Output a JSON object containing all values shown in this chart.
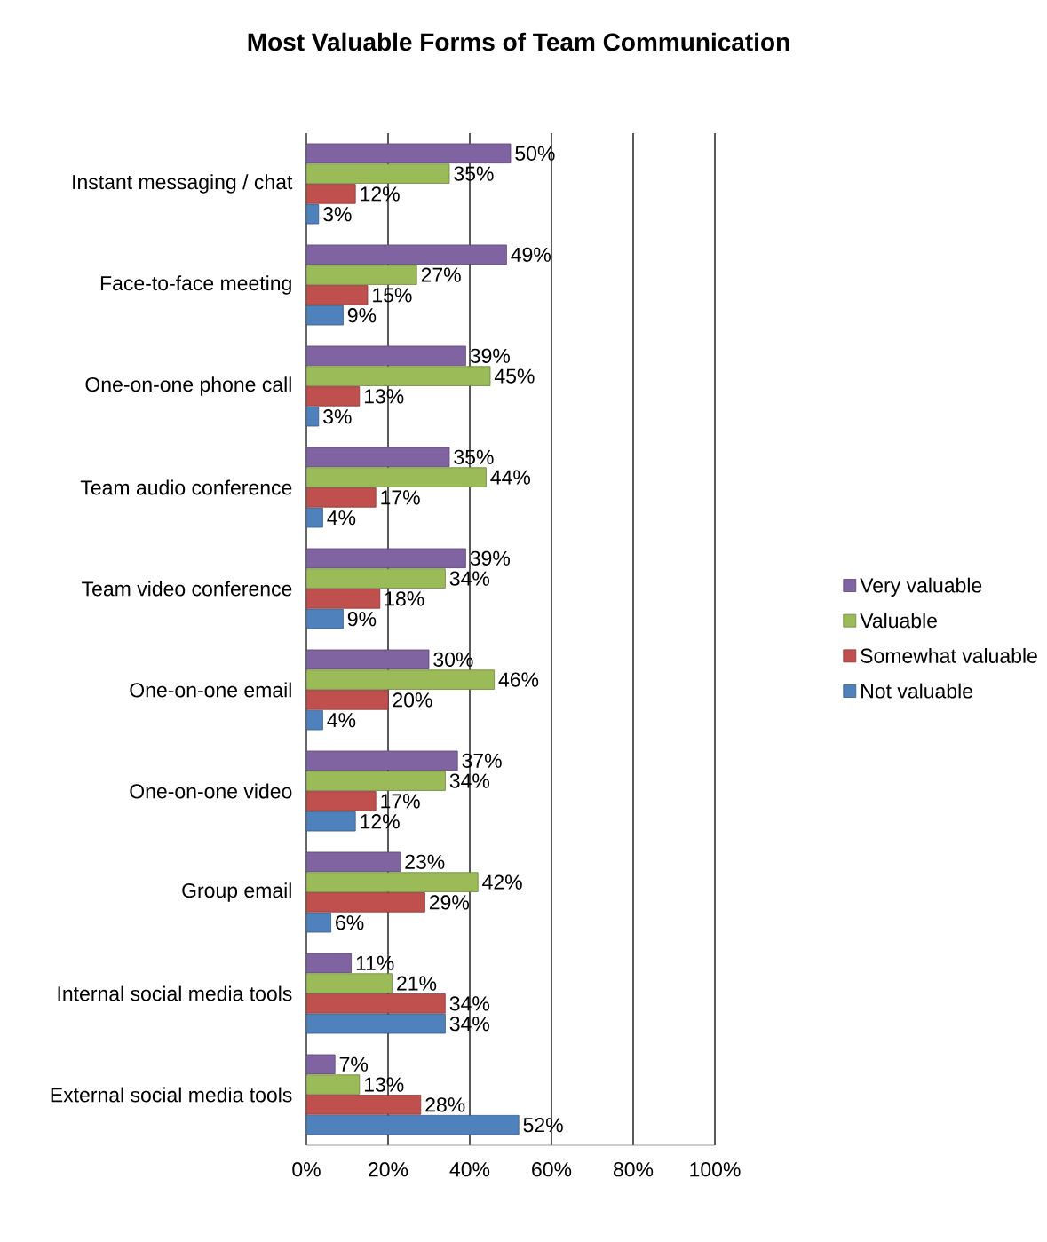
{
  "chart_data": {
    "type": "bar",
    "orientation": "horizontal",
    "title": "Most Valuable Forms of Team Communication",
    "categories": [
      "Instant messaging / chat",
      "Face-to-face meeting",
      "One-on-one phone call",
      "Team audio conference",
      "Team video conference",
      "One-on-one email",
      "One-on-one video",
      "Group email",
      "Internal social media tools",
      "External social media tools"
    ],
    "series": [
      {
        "name": "Very valuable",
        "color": "#8064a2",
        "values": [
          50,
          49,
          39,
          35,
          39,
          30,
          37,
          23,
          11,
          7
        ],
        "value_labels": [
          "50%",
          "49%",
          "39%",
          "35%",
          "39%",
          "30%",
          "37%",
          "23%",
          "11%",
          "7%"
        ]
      },
      {
        "name": "Valuable",
        "color": "#9bbb59",
        "values": [
          35,
          27,
          45,
          44,
          34,
          46,
          34,
          42,
          21,
          13
        ],
        "value_labels": [
          "35%",
          "27%",
          "45%",
          "44%",
          "34%",
          "46%",
          "34%",
          "42%",
          "21%",
          "13%"
        ]
      },
      {
        "name": "Somewhat valuable",
        "color": "#c0504d",
        "values": [
          12,
          15,
          13,
          17,
          18,
          20,
          17,
          29,
          34,
          28
        ],
        "value_labels": [
          "12%",
          "15%",
          "13%",
          "17%",
          "18%",
          "20%",
          "17%",
          "29%",
          "34%",
          "28%"
        ]
      },
      {
        "name": "Not valuable",
        "color": "#4f81bd",
        "values": [
          3,
          9,
          3,
          4,
          9,
          4,
          12,
          6,
          34,
          52
        ],
        "value_labels": [
          "3%",
          "9%",
          "3%",
          "4%",
          "9%",
          "4%",
          "12%",
          "6%",
          "34%",
          "52%"
        ]
      }
    ],
    "xlim": [
      0,
      100
    ],
    "xticks": [
      {
        "value": 0,
        "label": "0%"
      },
      {
        "value": 20,
        "label": "20%"
      },
      {
        "value": 40,
        "label": "40%"
      },
      {
        "value": 60,
        "label": "60%"
      },
      {
        "value": 80,
        "label": "80%"
      },
      {
        "value": 100,
        "label": "100%"
      }
    ],
    "grid": "x",
    "legend": "right"
  }
}
